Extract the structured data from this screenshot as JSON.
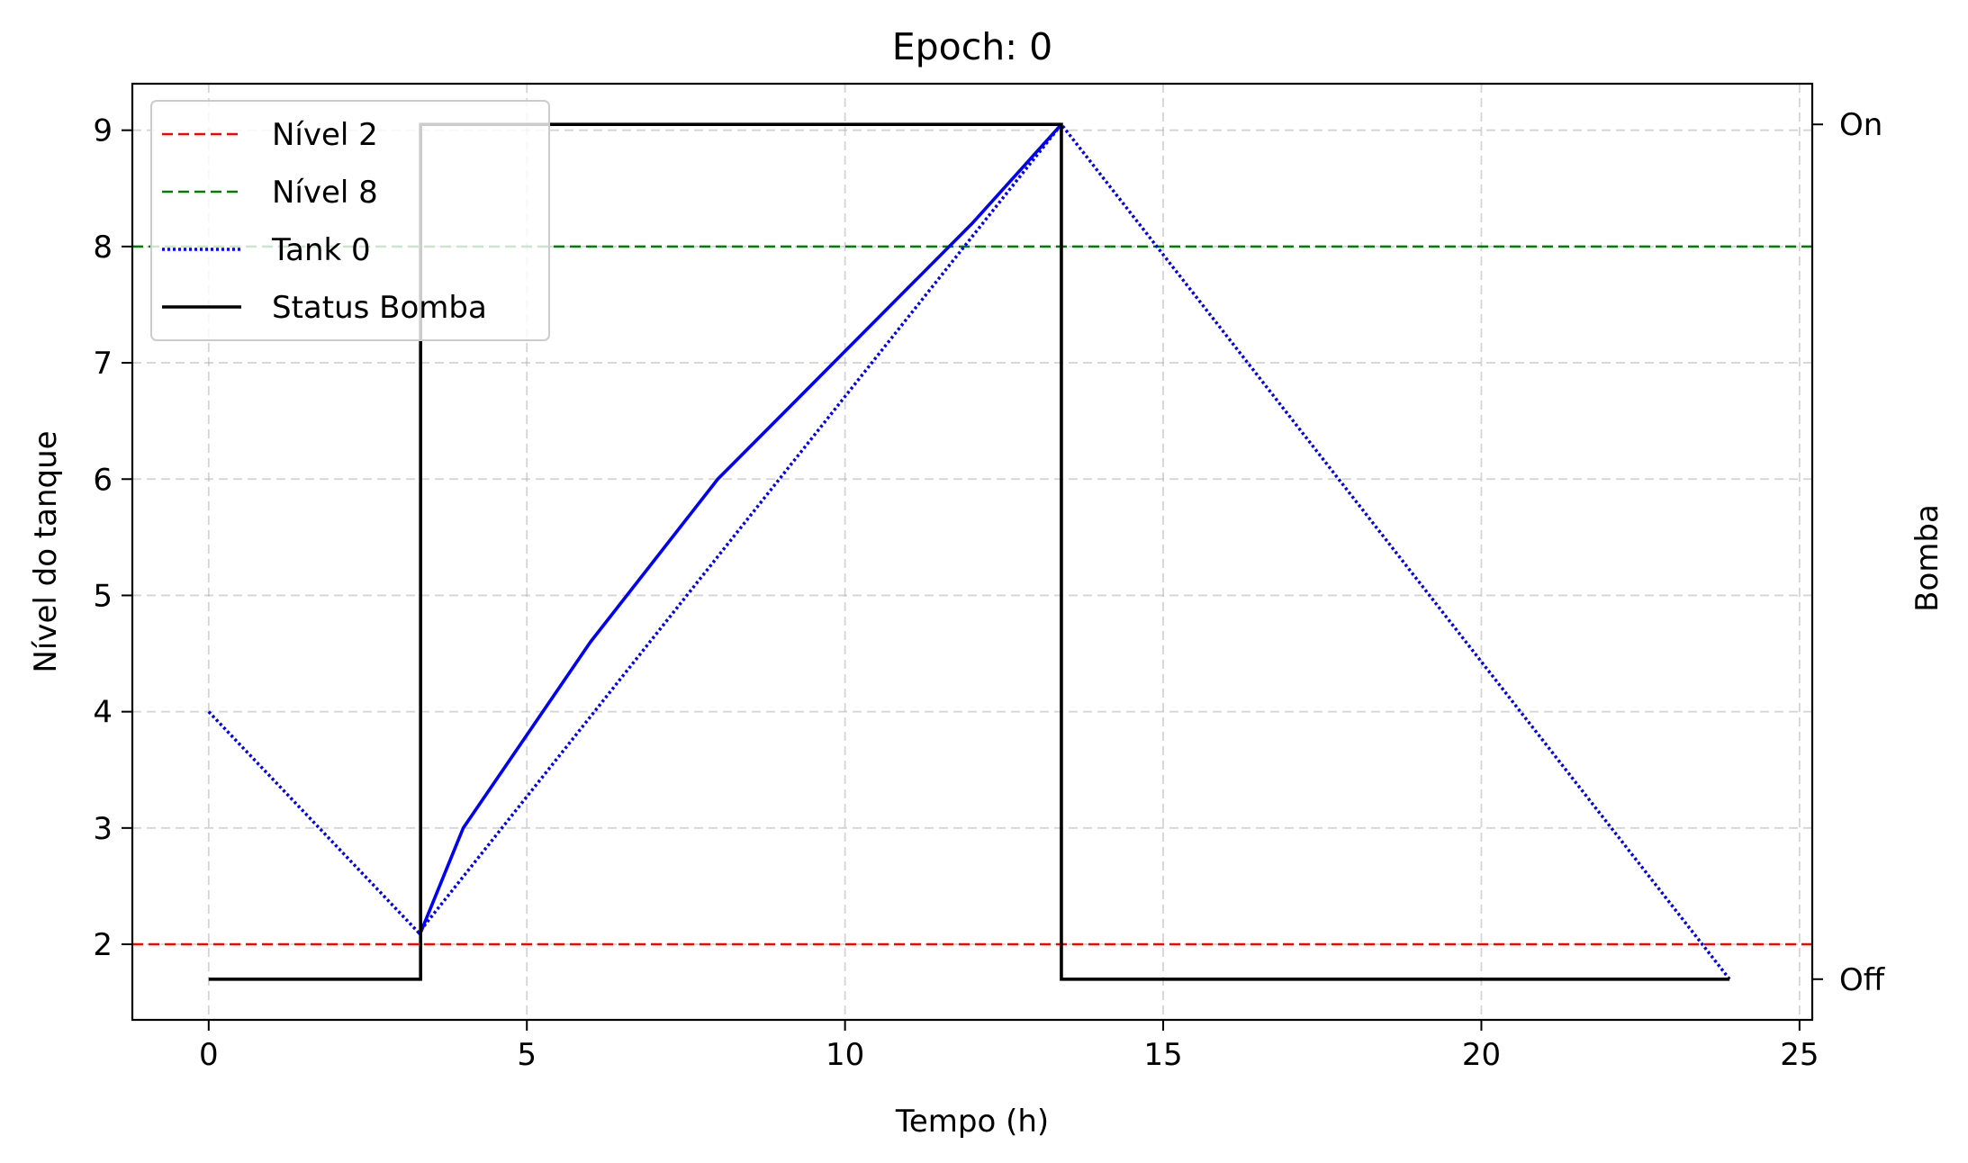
{
  "chart_data": {
    "type": "line",
    "title": "Epoch: 0",
    "xlabel": "Tempo (h)",
    "ylabel": "Nível do tanque",
    "y2label": "Bomba",
    "xlim": [
      -1.2,
      25.2
    ],
    "ylim": [
      1.35,
      9.4
    ],
    "xticks": [
      0,
      5,
      10,
      15,
      20,
      25
    ],
    "yticks": [
      2,
      3,
      4,
      5,
      6,
      7,
      8,
      9
    ],
    "y2ticks": [
      {
        "label": "On",
        "level": 9.05
      },
      {
        "label": "Off",
        "level": 1.7
      }
    ],
    "grid": true,
    "legend_position": "top-left",
    "series": [
      {
        "name": "Nível 2",
        "style": "dashed",
        "color": "#ff0000",
        "x": [
          -1.2,
          25.2
        ],
        "y": [
          2,
          2
        ]
      },
      {
        "name": "Nível 8",
        "style": "dashed",
        "color": "#008000",
        "x": [
          -1.2,
          25.2
        ],
        "y": [
          8,
          8
        ]
      },
      {
        "name": "Tank 0",
        "style": "dotted",
        "color": "#0000ff",
        "x": [
          0,
          3.3,
          13.4,
          23.9
        ],
        "y": [
          4.0,
          2.1,
          9.05,
          1.7
        ]
      },
      {
        "name": "Status Bomba",
        "style": "solid",
        "color": "#000000",
        "x": [
          0,
          3.33,
          3.33,
          13.4,
          13.4,
          23.9
        ],
        "y": [
          1.7,
          1.7,
          9.05,
          9.05,
          1.7,
          1.7
        ]
      }
    ],
    "pump_on_segment": {
      "color": "#0000ff",
      "x": [
        3.33,
        4,
        6,
        8,
        10,
        12,
        13.4
      ],
      "y": [
        2.1,
        3.0,
        4.6,
        6.0,
        7.1,
        8.2,
        9.05
      ]
    }
  }
}
